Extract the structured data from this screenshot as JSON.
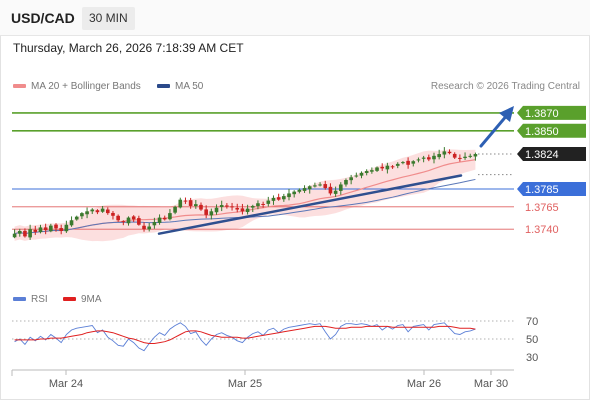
{
  "header": {
    "symbol": "USD/CAD",
    "timeframe": "30 MIN"
  },
  "datetime": "Thursday, March 26, 2026 7:18:39 AM CET",
  "credit": "Research © 2026 Trading Central",
  "legend": {
    "ma20": {
      "label": "MA 20 + Bollinger Bands",
      "color": "#f08c8c"
    },
    "ma50": {
      "label": "MA 50",
      "color": "#2b4a8a"
    },
    "rsi": {
      "label": "RSI",
      "color": "#5b7fd6"
    },
    "rsi_ma": {
      "label": "9MA",
      "color": "#e02020"
    }
  },
  "colors": {
    "bull": "#3b7a2e",
    "bear": "#cc2222",
    "bands": "#fbd9d9",
    "resistance": "#5aa02c",
    "support_blue": "#3b6fd9",
    "support_red": "#e06060",
    "trend": "#2f4f8f",
    "current": "#222222"
  },
  "chart_data": [
    {
      "type": "candlestick",
      "x_ticks": [
        "Mar 24",
        "Mar 25",
        "Mar 26",
        "Mar 30"
      ],
      "ylim": [
        1.37,
        1.389
      ],
      "levels": [
        {
          "value": 1.387,
          "label": "1.3870",
          "kind": "resistance"
        },
        {
          "value": 1.385,
          "label": "1.3850",
          "kind": "resistance"
        },
        {
          "value": 1.3824,
          "label": "1.3824",
          "kind": "current"
        },
        {
          "value": 1.3785,
          "label": "1.3785",
          "kind": "support_blue"
        },
        {
          "value": 1.3765,
          "label": "1.3765",
          "kind": "support_red"
        },
        {
          "value": 1.374,
          "label": "1.3740",
          "kind": "support_red"
        }
      ],
      "trendline": {
        "start": [
          0.23,
          1.3735
        ],
        "end": [
          0.78,
          1.38
        ]
      },
      "close": [
        1.3735,
        1.3738,
        1.3732,
        1.374,
        1.3737,
        1.3742,
        1.3739,
        1.3744,
        1.3741,
        1.3738,
        1.3745,
        1.375,
        1.3754,
        1.3758,
        1.376,
        1.3762,
        1.3759,
        1.3763,
        1.3758,
        1.3755,
        1.375,
        1.3748,
        1.3753,
        1.3751,
        1.3745,
        1.374,
        1.3743,
        1.3748,
        1.3753,
        1.3751,
        1.3758,
        1.3765,
        1.3773,
        1.3771,
        1.3766,
        1.3768,
        1.3762,
        1.3756,
        1.376,
        1.3764,
        1.3767,
        1.3766,
        1.3765,
        1.3762,
        1.376,
        1.3763,
        1.3766,
        1.3769,
        1.3768,
        1.3772,
        1.3775,
        1.3773,
        1.3777,
        1.378,
        1.3782,
        1.3784,
        1.3786,
        1.3788,
        1.3789,
        1.379,
        1.3786,
        1.378,
        1.3783,
        1.379,
        1.3795,
        1.3798,
        1.38,
        1.3803,
        1.3805,
        1.3806,
        1.3809,
        1.3808,
        1.3811,
        1.381,
        1.3813,
        1.3815,
        1.3812,
        1.3816,
        1.3818,
        1.382,
        1.3818,
        1.3822,
        1.3824,
        1.3827,
        1.3825,
        1.382,
        1.3819,
        1.3821,
        1.3822,
        1.3824
      ]
    },
    {
      "type": "line",
      "title": "RSI",
      "y_ticks": [
        70,
        50,
        30
      ],
      "ylim": [
        20,
        80
      ],
      "rsi": [
        47,
        50,
        44,
        52,
        48,
        53,
        49,
        55,
        51,
        46,
        55,
        60,
        62,
        63,
        64,
        65,
        57,
        60,
        52,
        48,
        43,
        42,
        50,
        46,
        40,
        37,
        45,
        52,
        57,
        54,
        61,
        65,
        68,
        64,
        56,
        58,
        49,
        43,
        50,
        55,
        57,
        54,
        52,
        48,
        46,
        52,
        56,
        58,
        54,
        60,
        62,
        57,
        61,
        63,
        64,
        65,
        66,
        67,
        66,
        67,
        58,
        50,
        55,
        64,
        67,
        67,
        66,
        67,
        66,
        64,
        66,
        60,
        64,
        61,
        65,
        66,
        58,
        64,
        65,
        66,
        60,
        66,
        67,
        68,
        62,
        56,
        55,
        58,
        59,
        61
      ],
      "rsi_ma": [
        49,
        49,
        49,
        49,
        49,
        50,
        50,
        51,
        51,
        51,
        52,
        53,
        54,
        55,
        57,
        58,
        59,
        59,
        58,
        57,
        55,
        53,
        51,
        50,
        48,
        46,
        45,
        45,
        46,
        47,
        49,
        52,
        55,
        58,
        59,
        59,
        58,
        56,
        54,
        53,
        52,
        52,
        52,
        52,
        51,
        51,
        52,
        53,
        54,
        55,
        56,
        57,
        58,
        59,
        60,
        61,
        62,
        63,
        64,
        64,
        64,
        63,
        62,
        62,
        62,
        63,
        63,
        63,
        64,
        64,
        64,
        64,
        64,
        63,
        63,
        63,
        63,
        63,
        63,
        63,
        63,
        63,
        64,
        64,
        64,
        63,
        62,
        62,
        62,
        61
      ]
    }
  ]
}
